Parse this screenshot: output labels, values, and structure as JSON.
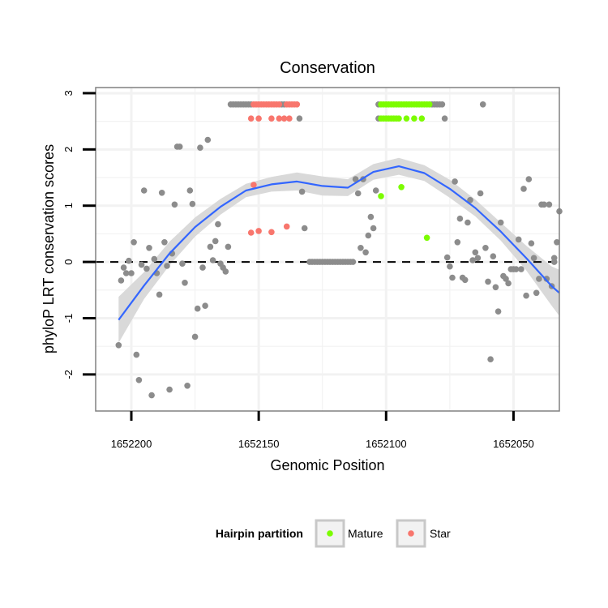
{
  "chart_data": {
    "type": "scatter",
    "title": "Conservation",
    "xlabel": "Genomic Position",
    "ylabel": "phyloP LRT conservation scores",
    "x_reversed": true,
    "xlim": [
      1652214,
      1652032
    ],
    "ylim": [
      -2.65,
      3.1
    ],
    "x_ticks": [
      1652200,
      1652150,
      1652100,
      1652050
    ],
    "x_tick_labels": [
      "1652200",
      "1652150",
      "1652100",
      "1652050"
    ],
    "y_ticks": [
      -2,
      -1,
      0,
      1,
      2,
      3
    ],
    "y_tick_labels": [
      "-2",
      "-1",
      "0",
      "1",
      "2",
      "3"
    ],
    "reference_line": {
      "y": 0,
      "style": "dashed"
    },
    "grid": true,
    "colors": {
      "Other": "#8c8c8c",
      "Mature": "#7cfc00",
      "Star": "#f8766d",
      "smooth": "#3366ff",
      "ribbon": "#d9d9d9",
      "panel_border": "#808080",
      "grid": "#f2f2f2"
    },
    "legend": {
      "title": "Hairpin partition",
      "position": "bottom",
      "entries": [
        {
          "label": "Mature",
          "color": "#7cfc00"
        },
        {
          "label": "Star",
          "color": "#f8766d"
        }
      ]
    },
    "series": [
      {
        "name": "Other",
        "points": [
          [
            1652205,
            -1.48
          ],
          [
            1652204,
            -0.33
          ],
          [
            1652203,
            -0.1
          ],
          [
            1652202,
            -0.2
          ],
          [
            1652201,
            0.02
          ],
          [
            1652200,
            -0.2
          ],
          [
            1652199,
            0.35
          ],
          [
            1652198,
            -1.65
          ],
          [
            1652197,
            -2.1
          ],
          [
            1652196,
            -0.05
          ],
          [
            1652195,
            1.27
          ],
          [
            1652194,
            -0.12
          ],
          [
            1652193,
            0.25
          ],
          [
            1652192,
            -2.37
          ],
          [
            1652191,
            0.05
          ],
          [
            1652190,
            -0.2
          ],
          [
            1652189,
            -0.58
          ],
          [
            1652188,
            1.23
          ],
          [
            1652187,
            0.35
          ],
          [
            1652186,
            -0.07
          ],
          [
            1652185,
            -2.27
          ],
          [
            1652184,
            0.15
          ],
          [
            1652183,
            1.02
          ],
          [
            1652182,
            2.05
          ],
          [
            1652181,
            2.05
          ],
          [
            1652180,
            -0.03
          ],
          [
            1652179,
            -0.37
          ],
          [
            1652178,
            -2.2
          ],
          [
            1652177,
            1.27
          ],
          [
            1652176,
            1.03
          ],
          [
            1652175,
            -1.33
          ],
          [
            1652174,
            -0.83
          ],
          [
            1652173,
            2.03
          ],
          [
            1652172,
            -0.1
          ],
          [
            1652171,
            -0.78
          ],
          [
            1652170,
            2.17
          ],
          [
            1652169,
            0.27
          ],
          [
            1652168,
            0.03
          ],
          [
            1652167,
            0.37
          ],
          [
            1652166,
            0.67
          ],
          [
            1652165,
            -0.03
          ],
          [
            1652164,
            -0.1
          ],
          [
            1652163,
            -0.17
          ],
          [
            1652162,
            0.27
          ],
          [
            1652161,
            2.8
          ],
          [
            1652160,
            2.8
          ],
          [
            1652159,
            2.8
          ],
          [
            1652158,
            2.8
          ],
          [
            1652157,
            2.8
          ],
          [
            1652156,
            2.8
          ],
          [
            1652155,
            2.8
          ],
          [
            1652154,
            2.8
          ],
          [
            1652153,
            2.8
          ],
          [
            1652141,
            2.8
          ],
          [
            1652140,
            2.8
          ],
          [
            1652134,
            2.55
          ],
          [
            1652133,
            1.25
          ],
          [
            1652132,
            0.6
          ],
          [
            1652130,
            0.0
          ],
          [
            1652129,
            0.0
          ],
          [
            1652128,
            0.0
          ],
          [
            1652127,
            0.0
          ],
          [
            1652126,
            0.0
          ],
          [
            1652125,
            0.0
          ],
          [
            1652124,
            0.0
          ],
          [
            1652123,
            0.0
          ],
          [
            1652122,
            0.0
          ],
          [
            1652121,
            0.0
          ],
          [
            1652120,
            0.0
          ],
          [
            1652119,
            0.0
          ],
          [
            1652118,
            0.0
          ],
          [
            1652117,
            0.0
          ],
          [
            1652116,
            0.0
          ],
          [
            1652115,
            0.0
          ],
          [
            1652114,
            0.0
          ],
          [
            1652113,
            0.0
          ],
          [
            1652112,
            1.47
          ],
          [
            1652111,
            1.22
          ],
          [
            1652110,
            0.25
          ],
          [
            1652109,
            1.47
          ],
          [
            1652108,
            0.17
          ],
          [
            1652107,
            0.47
          ],
          [
            1652106,
            0.8
          ],
          [
            1652105,
            0.6
          ],
          [
            1652104,
            1.27
          ],
          [
            1652103,
            2.8
          ],
          [
            1652103,
            2.55
          ],
          [
            1652082,
            2.8
          ],
          [
            1652081,
            2.8
          ],
          [
            1652080,
            2.8
          ],
          [
            1652079,
            2.8
          ],
          [
            1652078,
            2.8
          ],
          [
            1652077,
            2.55
          ],
          [
            1652076,
            0.08
          ],
          [
            1652075,
            -0.08
          ],
          [
            1652074,
            -0.28
          ],
          [
            1652073,
            1.43
          ],
          [
            1652072,
            0.35
          ],
          [
            1652071,
            0.77
          ],
          [
            1652070,
            -0.28
          ],
          [
            1652069,
            -0.32
          ],
          [
            1652068,
            0.7
          ],
          [
            1652067,
            1.1
          ],
          [
            1652066,
            0.03
          ],
          [
            1652065,
            0.17
          ],
          [
            1652064,
            0.07
          ],
          [
            1652063,
            1.22
          ],
          [
            1652062,
            2.8
          ],
          [
            1652061,
            0.25
          ],
          [
            1652060,
            -0.35
          ],
          [
            1652059,
            -1.73
          ],
          [
            1652058,
            0.1
          ],
          [
            1652057,
            -0.45
          ],
          [
            1652056,
            -0.88
          ],
          [
            1652055,
            0.7
          ],
          [
            1652054,
            -0.25
          ],
          [
            1652053,
            -0.3
          ],
          [
            1652052,
            -0.38
          ],
          [
            1652051,
            -0.13
          ],
          [
            1652050,
            -0.13
          ],
          [
            1652049,
            -0.13
          ],
          [
            1652048,
            0.4
          ],
          [
            1652047,
            -0.13
          ],
          [
            1652046,
            1.3
          ],
          [
            1652045,
            -0.6
          ],
          [
            1652044,
            1.47
          ],
          [
            1652043,
            0.33
          ],
          [
            1652042,
            0.07
          ],
          [
            1652041,
            -0.55
          ],
          [
            1652040,
            -0.3
          ],
          [
            1652039,
            1.02
          ],
          [
            1652038,
            1.02
          ],
          [
            1652037,
            -0.3
          ],
          [
            1652036,
            1.02
          ],
          [
            1652035,
            -0.43
          ],
          [
            1652034,
            0.07
          ],
          [
            1652034,
            0.0
          ],
          [
            1652033,
            0.35
          ],
          [
            1652032,
            0.9
          ]
        ]
      },
      {
        "name": "Mature",
        "points": [
          [
            1652102,
            2.8
          ],
          [
            1652101,
            2.8
          ],
          [
            1652100,
            2.8
          ],
          [
            1652099,
            2.8
          ],
          [
            1652098,
            2.8
          ],
          [
            1652097,
            2.8
          ],
          [
            1652096,
            2.8
          ],
          [
            1652095,
            2.8
          ],
          [
            1652094,
            2.8
          ],
          [
            1652093,
            2.8
          ],
          [
            1652092,
            2.8
          ],
          [
            1652091,
            2.8
          ],
          [
            1652090,
            2.8
          ],
          [
            1652089,
            2.8
          ],
          [
            1652088,
            2.8
          ],
          [
            1652087,
            2.8
          ],
          [
            1652086,
            2.8
          ],
          [
            1652085,
            2.8
          ],
          [
            1652084,
            2.8
          ],
          [
            1652083,
            2.8
          ],
          [
            1652102,
            2.55
          ],
          [
            1652101,
            2.55
          ],
          [
            1652100,
            2.55
          ],
          [
            1652099,
            2.55
          ],
          [
            1652098,
            2.55
          ],
          [
            1652097,
            2.55
          ],
          [
            1652096,
            2.55
          ],
          [
            1652095,
            2.55
          ],
          [
            1652092,
            2.55
          ],
          [
            1652089,
            2.55
          ],
          [
            1652086,
            2.55
          ],
          [
            1652102,
            1.17
          ],
          [
            1652094,
            1.33
          ],
          [
            1652084,
            0.43
          ]
        ]
      },
      {
        "name": "Star",
        "points": [
          [
            1652152,
            2.8
          ],
          [
            1652151,
            2.8
          ],
          [
            1652150,
            2.8
          ],
          [
            1652149,
            2.8
          ],
          [
            1652148,
            2.8
          ],
          [
            1652147,
            2.8
          ],
          [
            1652146,
            2.8
          ],
          [
            1652145,
            2.8
          ],
          [
            1652144,
            2.8
          ],
          [
            1652143,
            2.8
          ],
          [
            1652142,
            2.8
          ],
          [
            1652139,
            2.8
          ],
          [
            1652138,
            2.8
          ],
          [
            1652137,
            2.8
          ],
          [
            1652136,
            2.8
          ],
          [
            1652135,
            2.8
          ],
          [
            1652153,
            2.55
          ],
          [
            1652150,
            2.55
          ],
          [
            1652145,
            2.55
          ],
          [
            1652142,
            2.55
          ],
          [
            1652140,
            2.55
          ],
          [
            1652138,
            2.55
          ],
          [
            1652153,
            0.52
          ],
          [
            1652150,
            0.55
          ],
          [
            1652145,
            0.53
          ],
          [
            1652139,
            0.63
          ],
          [
            1652152,
            1.37
          ]
        ]
      }
    ],
    "smooth": {
      "method": "loess",
      "x": [
        1652205,
        1652195,
        1652185,
        1652175,
        1652165,
        1652155,
        1652145,
        1652135,
        1652125,
        1652115,
        1652105,
        1652095,
        1652085,
        1652075,
        1652065,
        1652055,
        1652045,
        1652035,
        1652032
      ],
      "y": [
        -1.03,
        -0.42,
        0.15,
        0.62,
        0.98,
        1.27,
        1.38,
        1.43,
        1.35,
        1.32,
        1.6,
        1.7,
        1.58,
        1.3,
        0.96,
        0.54,
        0.07,
        -0.43,
        -0.55
      ],
      "lower": [
        -1.44,
        -0.66,
        -0.06,
        0.45,
        0.84,
        1.15,
        1.25,
        1.27,
        1.18,
        1.17,
        1.46,
        1.55,
        1.44,
        1.14,
        0.81,
        0.38,
        -0.15,
        -0.78,
        -0.96
      ],
      "upper": [
        -0.62,
        -0.18,
        0.36,
        0.79,
        1.12,
        1.39,
        1.51,
        1.59,
        1.52,
        1.47,
        1.74,
        1.85,
        1.72,
        1.46,
        1.11,
        0.7,
        0.29,
        -0.08,
        -0.14
      ]
    }
  }
}
